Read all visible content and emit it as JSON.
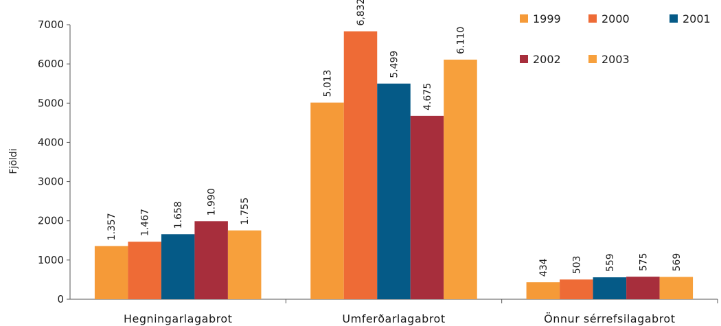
{
  "chart_data": {
    "type": "bar",
    "ylabel": "Fjöldi",
    "xlabel": "",
    "ylim": [
      0,
      7000
    ],
    "yticks": [
      "0",
      "1000",
      "2000",
      "3000",
      "4000",
      "5000",
      "6000",
      "7000"
    ],
    "categories": [
      "Hegningarlagabrot",
      "Umferðarlagabrot",
      "Önnur sérrefsilagabrot"
    ],
    "series": [
      {
        "name": "1999",
        "color": "#f59a38",
        "values": [
          1357,
          5013,
          434
        ],
        "labels": [
          "1.357",
          "5.013",
          "434"
        ]
      },
      {
        "name": "2000",
        "color": "#ee6b36",
        "values": [
          1467,
          6832,
          503
        ],
        "labels": [
          "1.467",
          "6,832",
          "503"
        ]
      },
      {
        "name": "2001",
        "color": "#055a87",
        "values": [
          1658,
          5499,
          559
        ],
        "labels": [
          "1.658",
          "5.499",
          "559"
        ]
      },
      {
        "name": "2002",
        "color": "#a72e3c",
        "values": [
          1990,
          4675,
          575
        ],
        "labels": [
          "1.990",
          "4.675",
          "575"
        ]
      },
      {
        "name": "2003",
        "color": "#f7a03c",
        "values": [
          1755,
          6110,
          569
        ],
        "labels": [
          "1.755",
          "6.110",
          "569"
        ]
      }
    ],
    "legend_position": "top-right",
    "grid": false
  }
}
